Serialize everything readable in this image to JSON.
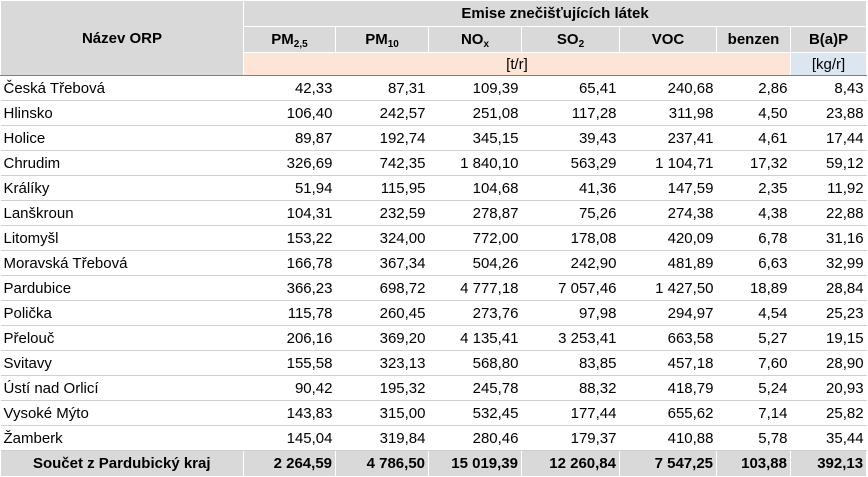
{
  "header": {
    "name_col": "Název ORP",
    "group": "Emise znečišťujících látek",
    "pollutants": [
      {
        "base": "PM",
        "sub": "2,5"
      },
      {
        "base": "PM",
        "sub": "10"
      },
      {
        "base": "NO",
        "sub": "x"
      },
      {
        "base": "SO",
        "sub": "2"
      },
      {
        "base": "VOC",
        "sub": ""
      },
      {
        "base": "benzen",
        "sub": ""
      },
      {
        "base": "B(a)P",
        "sub": ""
      }
    ],
    "unit_tons": "[t/r]",
    "unit_kg": "[kg/r]"
  },
  "rows": [
    {
      "name": "Česká Třebová",
      "values": [
        "42,33",
        "87,31",
        "109,39",
        "65,41",
        "240,68",
        "2,86",
        "8,43"
      ]
    },
    {
      "name": "Hlinsko",
      "values": [
        "106,40",
        "242,57",
        "251,08",
        "117,28",
        "311,98",
        "4,50",
        "23,88"
      ]
    },
    {
      "name": "Holice",
      "values": [
        "89,87",
        "192,74",
        "345,15",
        "39,43",
        "237,41",
        "4,61",
        "17,44"
      ]
    },
    {
      "name": "Chrudim",
      "values": [
        "326,69",
        "742,35",
        "1 840,10",
        "563,29",
        "1 104,71",
        "17,32",
        "59,12"
      ]
    },
    {
      "name": "Králíky",
      "values": [
        "51,94",
        "115,95",
        "104,68",
        "41,36",
        "147,59",
        "2,35",
        "11,92"
      ]
    },
    {
      "name": "Lanškroun",
      "values": [
        "104,31",
        "232,59",
        "278,87",
        "75,26",
        "274,38",
        "4,38",
        "22,88"
      ]
    },
    {
      "name": "Litomyšl",
      "values": [
        "153,22",
        "324,00",
        "772,00",
        "178,08",
        "420,09",
        "6,78",
        "31,16"
      ]
    },
    {
      "name": "Moravská Třebová",
      "values": [
        "166,78",
        "367,34",
        "504,26",
        "242,90",
        "481,89",
        "6,63",
        "32,99"
      ]
    },
    {
      "name": "Pardubice",
      "values": [
        "366,23",
        "698,72",
        "4 777,18",
        "7 057,46",
        "1 427,50",
        "18,89",
        "28,84"
      ]
    },
    {
      "name": "Polička",
      "values": [
        "115,78",
        "260,45",
        "273,76",
        "97,98",
        "294,97",
        "4,54",
        "25,23"
      ]
    },
    {
      "name": "Přelouč",
      "values": [
        "206,16",
        "369,20",
        "4 135,41",
        "3 253,41",
        "663,58",
        "5,27",
        "19,15"
      ]
    },
    {
      "name": "Svitavy",
      "values": [
        "155,58",
        "323,13",
        "568,80",
        "83,85",
        "457,18",
        "7,60",
        "28,90"
      ]
    },
    {
      "name": "Ústí nad Orlicí",
      "values": [
        "90,42",
        "195,32",
        "245,78",
        "88,32",
        "418,79",
        "5,24",
        "20,93"
      ]
    },
    {
      "name": "Vysoké Mýto",
      "values": [
        "143,83",
        "315,00",
        "532,45",
        "177,44",
        "655,62",
        "7,14",
        "25,82"
      ]
    },
    {
      "name": "Žamberk",
      "values": [
        "145,04",
        "319,84",
        "280,46",
        "179,37",
        "410,88",
        "5,78",
        "35,44"
      ]
    }
  ],
  "total": {
    "name": "Součet z Pardubický kraj",
    "values": [
      "2 264,59",
      "4 786,50",
      "15 019,39",
      "12 260,84",
      "7 547,25",
      "103,88",
      "392,13"
    ]
  }
}
